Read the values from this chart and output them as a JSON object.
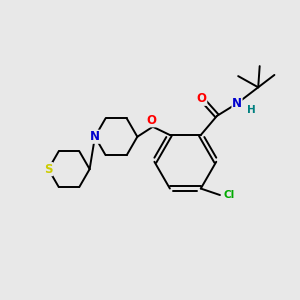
{
  "bg_color": "#e8e8e8",
  "bond_color": "#000000",
  "bond_lw": 1.4,
  "atom_colors": {
    "O": "#ff0000",
    "N": "#0000cd",
    "S": "#cccc00",
    "Cl": "#00aa00",
    "H": "#008080",
    "C": "#000000"
  },
  "font_size": 7.5,
  "fig_size": [
    3.0,
    3.0
  ],
  "dpi": 100
}
